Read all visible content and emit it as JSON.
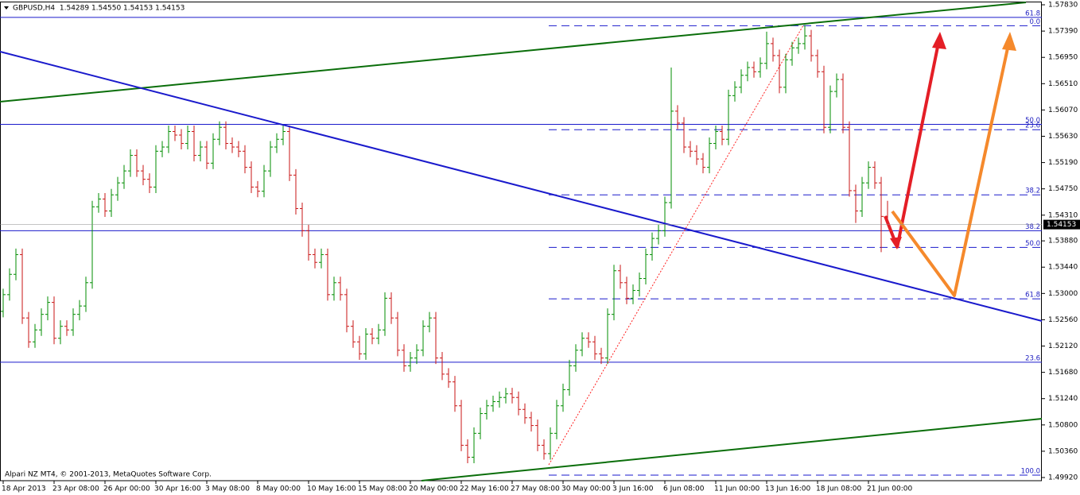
{
  "chart_data": {
    "type": "ohlc",
    "title": "GBPUSD,H4  1.54289 1.54550 1.54153 1.54153",
    "footer": "Alpari NZ MT4, © 2001-2013, MetaQuotes Software Corp.",
    "up_color": "#008c00",
    "down_color": "#c81414",
    "level_color": "#1a1acc",
    "ylim": [
      1.49867,
      1.5791
    ],
    "yticks": [
      {
        "value": 1.5783,
        "label": "1.57830"
      },
      {
        "value": 1.5739,
        "label": "1.57390"
      },
      {
        "value": 1.5695,
        "label": "1.56950"
      },
      {
        "value": 1.5651,
        "label": "1.56510"
      },
      {
        "value": 1.5607,
        "label": "1.56070"
      },
      {
        "value": 1.5563,
        "label": "1.55630"
      },
      {
        "value": 1.5519,
        "label": "1.55190"
      },
      {
        "value": 1.5475,
        "label": "1.54750"
      },
      {
        "value": 1.5431,
        "label": "1.54310"
      },
      {
        "value": 1.5388,
        "label": "1.53880"
      },
      {
        "value": 1.5344,
        "label": "1.53440"
      },
      {
        "value": 1.53,
        "label": "1.53000"
      },
      {
        "value": 1.5256,
        "label": "1.52560"
      },
      {
        "value": 1.5212,
        "label": "1.52120"
      },
      {
        "value": 1.5168,
        "label": "1.51680"
      },
      {
        "value": 1.5124,
        "label": "1.51240"
      },
      {
        "value": 1.508,
        "label": "1.50800"
      },
      {
        "value": 1.5036,
        "label": "1.50360"
      },
      {
        "value": 1.4992,
        "label": "1.49920"
      }
    ],
    "categories": [
      "18 Apr 2013",
      null,
      null,
      null,
      null,
      null,
      null,
      null,
      "23 Apr 08:00",
      null,
      null,
      null,
      null,
      null,
      null,
      null,
      "26 Apr 00:00",
      null,
      null,
      null,
      null,
      null,
      null,
      null,
      "30 Apr 16:00",
      null,
      null,
      null,
      null,
      null,
      null,
      null,
      "3 May 08:00",
      null,
      null,
      null,
      null,
      null,
      null,
      null,
      "8 May 00:00",
      null,
      null,
      null,
      null,
      null,
      null,
      null,
      "10 May 16:00",
      null,
      null,
      null,
      null,
      null,
      null,
      null,
      "15 May 08:00",
      null,
      null,
      null,
      null,
      null,
      null,
      null,
      "20 May 00:00",
      null,
      null,
      null,
      null,
      null,
      null,
      null,
      "22 May 16:00",
      null,
      null,
      null,
      null,
      null,
      null,
      null,
      "27 May 08:00",
      null,
      null,
      null,
      null,
      null,
      null,
      null,
      "30 May 00:00",
      null,
      null,
      null,
      null,
      null,
      null,
      null,
      "3 Jun 16:00",
      null,
      null,
      null,
      null,
      null,
      null,
      null,
      "6 Jun 08:00",
      null,
      null,
      null,
      null,
      null,
      null,
      null,
      "11 Jun 00:00",
      null,
      null,
      null,
      null,
      null,
      null,
      null,
      "13 Jun 16:00",
      null,
      null,
      null,
      null,
      null,
      null,
      null,
      "18 Jun 08:00",
      null,
      null,
      null,
      null,
      null,
      null,
      null,
      "21 Jun 00:00",
      null,
      null,
      null
    ],
    "open": [
      1.527,
      1.5298,
      1.5332,
      1.5365,
      1.5259,
      1.5219,
      1.5239,
      1.5265,
      1.5285,
      1.5225,
      1.5245,
      1.5239,
      1.5265,
      1.5279,
      1.5318,
      1.5445,
      1.5458,
      1.5438,
      1.5465,
      1.5485,
      1.5505,
      1.5531,
      1.5505,
      1.5491,
      1.5478,
      1.5538,
      1.5545,
      1.5571,
      1.5565,
      1.5551,
      1.5571,
      1.5531,
      1.5545,
      1.5518,
      1.5558,
      1.5578,
      1.5551,
      1.5545,
      1.5538,
      1.5511,
      1.5478,
      1.5471,
      1.5505,
      1.5545,
      1.5558,
      1.5571,
      1.5498,
      1.5442,
      1.5405,
      1.5365,
      1.5352,
      1.5365,
      1.5298,
      1.5318,
      1.5298,
      1.5245,
      1.5219,
      1.5199,
      1.5232,
      1.5225,
      1.5239,
      1.5292,
      1.5259,
      1.5205,
      1.5179,
      1.5192,
      1.5205,
      1.5245,
      1.5259,
      1.5192,
      1.5165,
      1.5152,
      1.5112,
      1.5046,
      1.5026,
      1.5066,
      1.5099,
      1.5112,
      1.5119,
      1.5126,
      1.5132,
      1.5126,
      1.5106,
      1.5092,
      1.5079,
      1.5046,
      1.5032,
      1.5066,
      1.5112,
      1.5139,
      1.5179,
      1.5205,
      1.5225,
      1.5219,
      1.5199,
      1.5192,
      1.5265,
      1.5338,
      1.5318,
      1.5292,
      1.5305,
      1.5325,
      1.5365,
      1.5392,
      1.5405,
      1.5452,
      1.5605,
      1.5585,
      1.5545,
      1.5538,
      1.5525,
      1.5511,
      1.5551,
      1.5571,
      1.5558,
      1.5631,
      1.5645,
      1.5665,
      1.5678,
      1.5671,
      1.5685,
      1.5718,
      1.5698,
      1.5645,
      1.5691,
      1.5711,
      1.5718,
      1.5731,
      1.5698,
      1.5671,
      1.5578,
      1.5638,
      1.5658,
      1.5578,
      1.5472,
      1.5438,
      1.5485,
      1.5511,
      1.5485,
      1.54289
    ],
    "high": [
      1.5308,
      1.5342,
      1.5375,
      1.5375,
      1.5269,
      1.5249,
      1.5275,
      1.5295,
      1.5295,
      1.5255,
      1.5255,
      1.5275,
      1.5289,
      1.5328,
      1.5455,
      1.5468,
      1.5468,
      1.5475,
      1.5495,
      1.5515,
      1.5541,
      1.5541,
      1.5515,
      1.5501,
      1.5548,
      1.5555,
      1.5581,
      1.5581,
      1.5575,
      1.5581,
      1.5581,
      1.5555,
      1.5555,
      1.5568,
      1.5588,
      1.5588,
      1.5561,
      1.5555,
      1.5548,
      1.5521,
      1.5488,
      1.5515,
      1.5555,
      1.5568,
      1.5581,
      1.5581,
      1.5508,
      1.5452,
      1.5415,
      1.5375,
      1.5375,
      1.5375,
      1.5328,
      1.5328,
      1.5308,
      1.5255,
      1.5229,
      1.5242,
      1.5242,
      1.5249,
      1.5302,
      1.5302,
      1.5269,
      1.5215,
      1.5202,
      1.5215,
      1.5255,
      1.5269,
      1.5269,
      1.5202,
      1.5175,
      1.5162,
      1.5122,
      1.5056,
      1.5076,
      1.5109,
      1.5122,
      1.5129,
      1.5136,
      1.5142,
      1.5142,
      1.5136,
      1.5116,
      1.5102,
      1.5089,
      1.5056,
      1.5076,
      1.5122,
      1.5149,
      1.5189,
      1.5215,
      1.5235,
      1.5235,
      1.5229,
      1.5209,
      1.5275,
      1.5348,
      1.5348,
      1.5328,
      1.5315,
      1.5335,
      1.5375,
      1.5402,
      1.5415,
      1.5462,
      1.5678,
      1.5615,
      1.5595,
      1.5555,
      1.5548,
      1.5535,
      1.5561,
      1.5581,
      1.5581,
      1.5641,
      1.5655,
      1.5675,
      1.5688,
      1.5688,
      1.5695,
      1.5738,
      1.5728,
      1.5708,
      1.5701,
      1.5721,
      1.5728,
      1.5749,
      1.5741,
      1.5708,
      1.5681,
      1.5648,
      1.5668,
      1.5668,
      1.5588,
      1.5482,
      1.5495,
      1.5521,
      1.5521,
      1.5495,
      1.5455
    ],
    "low": [
      1.526,
      1.5288,
      1.5322,
      1.5249,
      1.5209,
      1.5209,
      1.5229,
      1.5255,
      1.5215,
      1.5215,
      1.5229,
      1.5229,
      1.5255,
      1.5269,
      1.5308,
      1.5435,
      1.5428,
      1.5428,
      1.5455,
      1.5475,
      1.5495,
      1.5495,
      1.5481,
      1.5468,
      1.5468,
      1.5528,
      1.5535,
      1.5555,
      1.5541,
      1.5541,
      1.5521,
      1.5521,
      1.5508,
      1.5508,
      1.5548,
      1.5541,
      1.5535,
      1.5528,
      1.5501,
      1.5468,
      1.5461,
      1.5461,
      1.5495,
      1.5535,
      1.5548,
      1.5488,
      1.5432,
      1.5395,
      1.5355,
      1.5342,
      1.5342,
      1.5288,
      1.5288,
      1.5288,
      1.5235,
      1.5209,
      1.5189,
      1.5189,
      1.5215,
      1.5215,
      1.5229,
      1.5249,
      1.5195,
      1.5169,
      1.5169,
      1.5182,
      1.5195,
      1.5235,
      1.5182,
      1.5155,
      1.5142,
      1.5102,
      1.5036,
      1.5016,
      1.5016,
      1.5056,
      1.5089,
      1.5102,
      1.5109,
      1.5116,
      1.5116,
      1.5096,
      1.5082,
      1.5069,
      1.5036,
      1.5022,
      1.5022,
      1.5056,
      1.5102,
      1.5129,
      1.5169,
      1.5195,
      1.5209,
      1.5189,
      1.5182,
      1.5182,
      1.5255,
      1.5308,
      1.5282,
      1.5282,
      1.5295,
      1.5315,
      1.5355,
      1.5382,
      1.5395,
      1.5442,
      1.5575,
      1.5535,
      1.5528,
      1.5515,
      1.5501,
      1.5501,
      1.5541,
      1.5548,
      1.5548,
      1.5621,
      1.5635,
      1.5655,
      1.5661,
      1.5661,
      1.5675,
      1.5688,
      1.5635,
      1.5635,
      1.5681,
      1.5701,
      1.5708,
      1.5688,
      1.5661,
      1.5568,
      1.5568,
      1.5628,
      1.5568,
      1.5462,
      1.5418,
      1.5428,
      1.5475,
      1.5475,
      1.5369,
      1.54153
    ],
    "close": [
      1.5298,
      1.5332,
      1.5365,
      1.5259,
      1.5219,
      1.5239,
      1.5265,
      1.5285,
      1.5225,
      1.5245,
      1.5239,
      1.5265,
      1.5279,
      1.5318,
      1.5445,
      1.5458,
      1.5438,
      1.5465,
      1.5485,
      1.5505,
      1.5531,
      1.5505,
      1.5491,
      1.5478,
      1.5538,
      1.5545,
      1.5571,
      1.5565,
      1.5551,
      1.5571,
      1.5531,
      1.5545,
      1.5518,
      1.5558,
      1.5578,
      1.5551,
      1.5545,
      1.5538,
      1.5511,
      1.5478,
      1.5471,
      1.5505,
      1.5545,
      1.5558,
      1.5571,
      1.5498,
      1.5442,
      1.5405,
      1.5365,
      1.5352,
      1.5365,
      1.5298,
      1.5318,
      1.5298,
      1.5245,
      1.5219,
      1.5199,
      1.5232,
      1.5225,
      1.5239,
      1.5292,
      1.5259,
      1.5205,
      1.5179,
      1.5192,
      1.5205,
      1.5245,
      1.5259,
      1.5192,
      1.5165,
      1.5152,
      1.5112,
      1.5046,
      1.5026,
      1.5066,
      1.5099,
      1.5112,
      1.5119,
      1.5126,
      1.5132,
      1.5126,
      1.5106,
      1.5092,
      1.5079,
      1.5046,
      1.5032,
      1.5066,
      1.5112,
      1.5139,
      1.5179,
      1.5205,
      1.5225,
      1.5219,
      1.5199,
      1.5192,
      1.5265,
      1.5338,
      1.5318,
      1.5292,
      1.5305,
      1.5325,
      1.5365,
      1.5392,
      1.5405,
      1.5452,
      1.5605,
      1.5585,
      1.5545,
      1.5538,
      1.5525,
      1.5511,
      1.5551,
      1.5571,
      1.5558,
      1.5631,
      1.5645,
      1.5665,
      1.5678,
      1.5671,
      1.5685,
      1.5718,
      1.5698,
      1.5645,
      1.5691,
      1.5711,
      1.5718,
      1.5731,
      1.5698,
      1.5671,
      1.5578,
      1.5638,
      1.5658,
      1.5578,
      1.5472,
      1.5438,
      1.5485,
      1.5511,
      1.5485,
      1.54289,
      1.54153
    ],
    "levels": [
      {
        "price": 1.5762,
        "label": "61.8",
        "style": "solid"
      },
      {
        "price": 1.5583,
        "label": "50.0",
        "style": "solid"
      },
      {
        "price": 1.5405,
        "label": "38.2",
        "style": "solid"
      },
      {
        "price": 1.5185,
        "label": "23.6",
        "style": "solid"
      },
      {
        "price": 1.5748,
        "label": "0.0",
        "style": "dashed"
      },
      {
        "price": 1.5574,
        "label": "23.6",
        "style": "dashed"
      },
      {
        "price": 1.5465,
        "label": "38.2",
        "style": "dashed"
      },
      {
        "price": 1.5377,
        "label": "50.0",
        "style": "dashed"
      },
      {
        "price": 1.5291,
        "label": "61.8",
        "style": "dashed"
      },
      {
        "price": 1.4996,
        "label": "100.0",
        "style": "dashed"
      }
    ]
  }
}
